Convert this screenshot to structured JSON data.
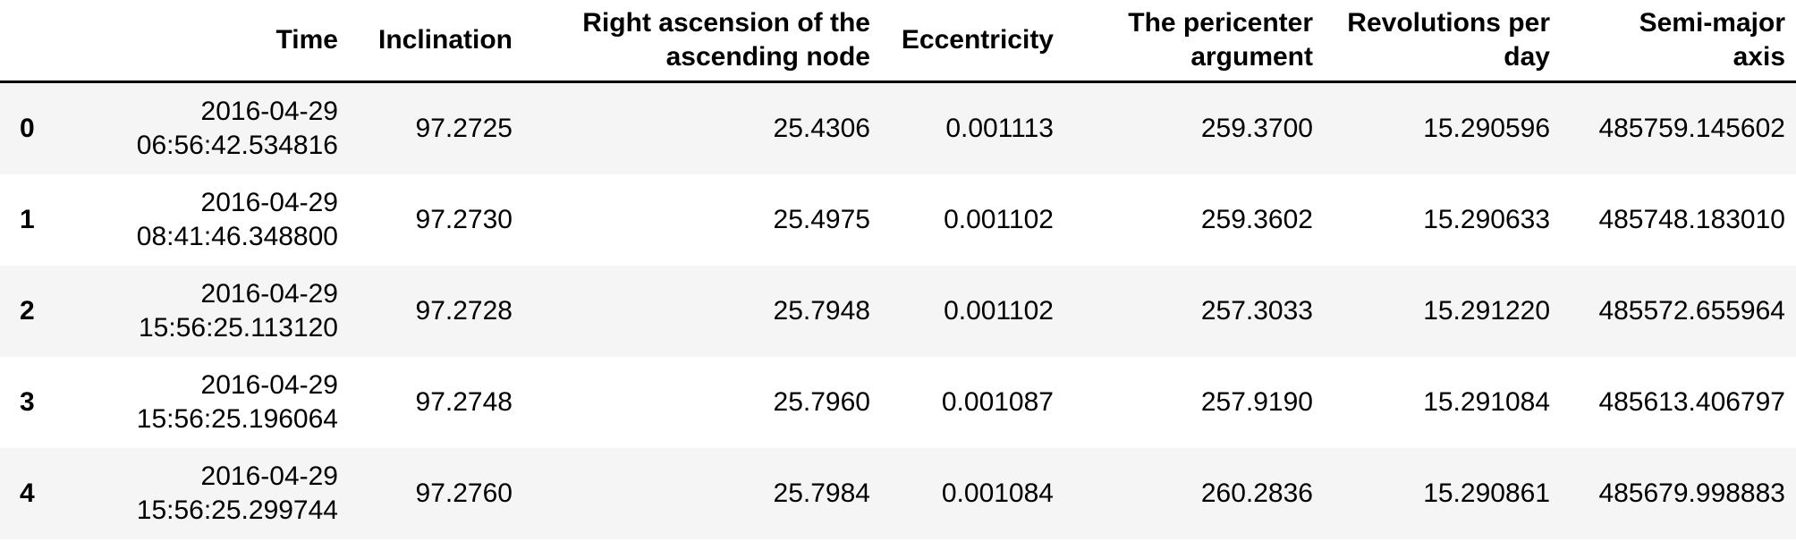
{
  "colors": {
    "stripe_row_background": "#f5f5f5",
    "plain_row_background": "#ffffff",
    "header_border": "#000000",
    "text": "#000000"
  },
  "table": {
    "columns": {
      "index": "",
      "time": "Time",
      "inclination": "Inclination",
      "right_ascension": "Right ascension of the\nascending node",
      "eccentricity": "Eccentricity",
      "pericenter_argument": "The pericenter\nargument",
      "revolutions_per_day": "Revolutions per\nday",
      "semi_major_axis": "Semi-major\naxis"
    },
    "rows": [
      {
        "index": "0",
        "time": "2016-04-29\n06:56:42.534816",
        "inclination": "97.2725",
        "right_ascension": "25.4306",
        "eccentricity": "0.001113",
        "pericenter_argument": "259.3700",
        "revolutions_per_day": "15.290596",
        "semi_major_axis": "485759.145602"
      },
      {
        "index": "1",
        "time": "2016-04-29\n08:41:46.348800",
        "inclination": "97.2730",
        "right_ascension": "25.4975",
        "eccentricity": "0.001102",
        "pericenter_argument": "259.3602",
        "revolutions_per_day": "15.290633",
        "semi_major_axis": "485748.183010"
      },
      {
        "index": "2",
        "time": "2016-04-29\n15:56:25.113120",
        "inclination": "97.2728",
        "right_ascension": "25.7948",
        "eccentricity": "0.001102",
        "pericenter_argument": "257.3033",
        "revolutions_per_day": "15.291220",
        "semi_major_axis": "485572.655964"
      },
      {
        "index": "3",
        "time": "2016-04-29\n15:56:25.196064",
        "inclination": "97.2748",
        "right_ascension": "25.7960",
        "eccentricity": "0.001087",
        "pericenter_argument": "257.9190",
        "revolutions_per_day": "15.291084",
        "semi_major_axis": "485613.406797"
      },
      {
        "index": "4",
        "time": "2016-04-29\n15:56:25.299744",
        "inclination": "97.2760",
        "right_ascension": "25.7984",
        "eccentricity": "0.001084",
        "pericenter_argument": "260.2836",
        "revolutions_per_day": "15.290861",
        "semi_major_axis": "485679.998883"
      }
    ]
  }
}
